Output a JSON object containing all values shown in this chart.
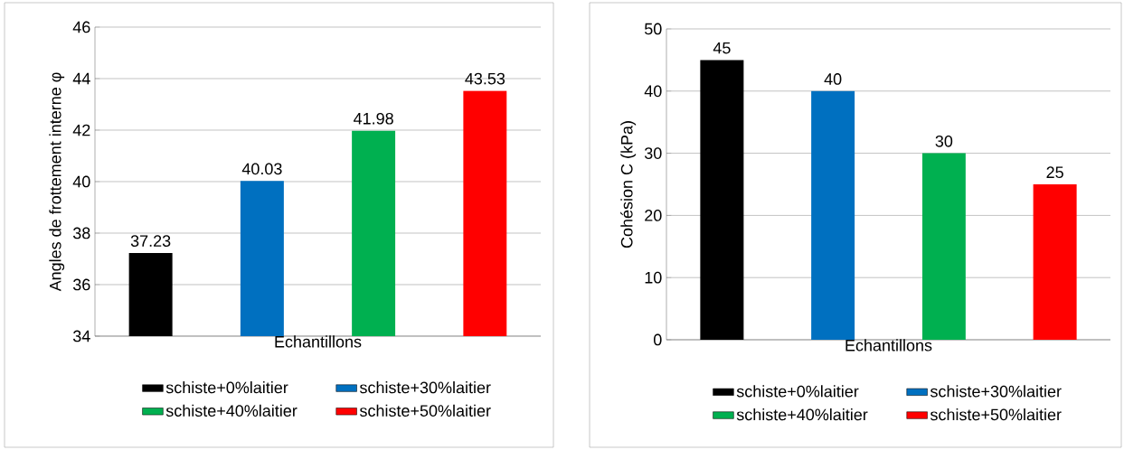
{
  "chart_data": [
    {
      "type": "bar",
      "ylabel": "Angles de frottement interne φ",
      "xlabel": "Echantillons",
      "categories": [
        null,
        null,
        null,
        null
      ],
      "series": [
        {
          "name": "schiste+0%laitier",
          "color": "#000000",
          "values": [
            37.23,
            null,
            null,
            null
          ]
        },
        {
          "name": "schiste+30%laitier",
          "color": "#0070c0",
          "values": [
            null,
            40.03,
            null,
            null
          ]
        },
        {
          "name": "schiste+40%laitier",
          "color": "#00b050",
          "values": [
            null,
            null,
            41.98,
            null
          ]
        },
        {
          "name": "schiste+50%laitier",
          "color": "#ff0000",
          "values": [
            null,
            null,
            null,
            43.53
          ]
        }
      ],
      "ylim": [
        34,
        46
      ],
      "yticks": [
        34,
        36,
        38,
        40,
        42,
        44,
        46
      ],
      "grid": "y",
      "legend": "bottom",
      "data_labels": true
    },
    {
      "type": "bar",
      "ylabel": "Cohésion C (kPa)",
      "xlabel": "Echantillons",
      "categories": [
        null,
        null,
        null,
        null
      ],
      "series": [
        {
          "name": "schiste+0%laitier",
          "color": "#000000",
          "values": [
            45,
            null,
            null,
            null
          ]
        },
        {
          "name": "schiste+30%laitier",
          "color": "#0070c0",
          "values": [
            null,
            40,
            null,
            null
          ]
        },
        {
          "name": "schiste+40%laitier",
          "color": "#00b050",
          "values": [
            null,
            null,
            30,
            null
          ]
        },
        {
          "name": "schiste+50%laitier",
          "color": "#ff0000",
          "values": [
            null,
            null,
            null,
            25
          ]
        }
      ],
      "ylim": [
        0,
        50
      ],
      "yticks": [
        0,
        10,
        20,
        30,
        40,
        50
      ],
      "grid": "y",
      "legend": "bottom",
      "data_labels": true
    }
  ]
}
